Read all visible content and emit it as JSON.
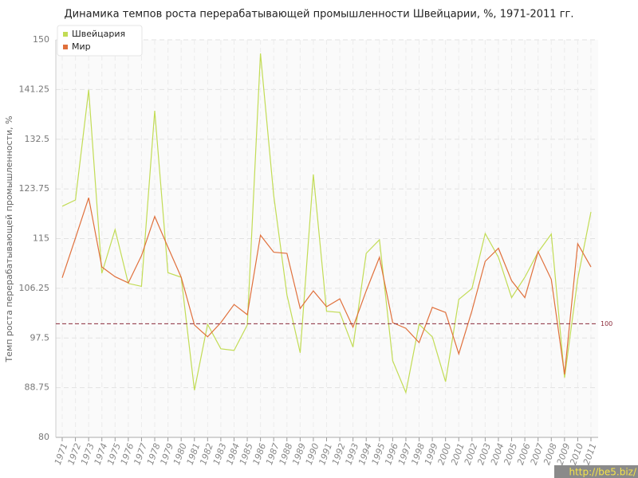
{
  "chart_data": {
    "type": "line",
    "title": "Динамика темпов роста перерабатывающей промышленности Швейцарии, %, 1971-2011 гг.",
    "y_label": "Темп роста перерабатывающей промышленности, %",
    "categories": [
      "1971",
      "1972",
      "1973",
      "1974",
      "1975",
      "1976",
      "1977",
      "1978",
      "1979",
      "1980",
      "1981",
      "1982",
      "1983",
      "1984",
      "1985",
      "1986",
      "1987",
      "1988",
      "1989",
      "1990",
      "1991",
      "1992",
      "1993",
      "1994",
      "1995",
      "1996",
      "1997",
      "1998",
      "1999",
      "2000",
      "2001",
      "2002",
      "2003",
      "2004",
      "2005",
      "2006",
      "2007",
      "2008",
      "2009",
      "2010",
      "2011"
    ],
    "series": [
      {
        "name": "Швейцария",
        "color": "#c2dc55",
        "values": [
          120.7,
          121.8,
          141.2,
          108.9,
          116.6,
          107.1,
          106.6,
          137.5,
          109.0,
          108.2,
          88.3,
          99.9,
          95.6,
          95.3,
          99.8,
          147.6,
          122.6,
          105.1,
          94.9,
          126.3,
          102.2,
          102.0,
          95.9,
          112.4,
          114.8,
          93.5,
          87.9,
          99.9,
          97.7,
          89.8,
          104.3,
          106.2,
          115.9,
          111.7,
          104.6,
          108.2,
          112.6,
          115.8,
          90.5,
          107.9,
          119.7
        ]
      },
      {
        "name": "Мир",
        "color": "#e0703c",
        "values": [
          108.1,
          115.1,
          122.2,
          110.0,
          108.3,
          107.2,
          112.0,
          118.9,
          113.5,
          108.2,
          99.8,
          97.7,
          100.2,
          103.4,
          101.6,
          115.6,
          112.6,
          112.4,
          102.7,
          105.8,
          103.0,
          104.4,
          99.4,
          105.8,
          111.7,
          100.2,
          99.2,
          96.7,
          102.9,
          102.0,
          94.7,
          102.3,
          111.0,
          113.3,
          107.6,
          104.6,
          112.7,
          107.8,
          91.1,
          114.1,
          110.0
        ]
      }
    ],
    "ylim": [
      80,
      150
    ],
    "yticks": [
      80,
      88.75,
      97.5,
      106.25,
      115,
      123.75,
      132.5,
      141.25,
      150
    ],
    "reference_line": 100,
    "grid": true,
    "legend": "top-left",
    "watermark": "http://be5.biz/"
  }
}
